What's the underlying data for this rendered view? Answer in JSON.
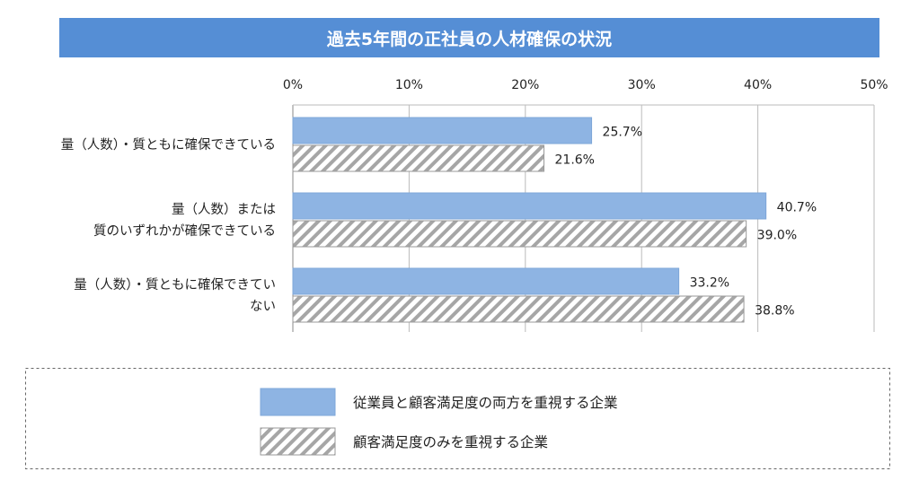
{
  "chart_data": {
    "type": "bar",
    "orientation": "horizontal",
    "title": "過去5年間の正社員の人材確保の状況",
    "categories": [
      [
        "量（人数）・質ともに確保できている"
      ],
      [
        "量（人数）または",
        "質のいずれかが確保できている"
      ],
      [
        "量（人数）・質ともに確保できてい",
        "ない"
      ]
    ],
    "series": [
      {
        "name": "従業員と顧客満足度の両方を重視する企業",
        "values": [
          25.7,
          40.7,
          33.2
        ],
        "labels": [
          "25.7%",
          "40.7%",
          "33.2%"
        ],
        "color": "#8eb4e3",
        "pattern": "solid"
      },
      {
        "name": "顧客満足度のみを重視する企業",
        "values": [
          21.6,
          39.0,
          38.8
        ],
        "labels": [
          "21.6%",
          "39.0%",
          "38.8%"
        ],
        "color": "#a6a6a6",
        "pattern": "diagonal-hatch"
      }
    ],
    "xlim": [
      0,
      50
    ],
    "xticks": [
      "0%",
      "10%",
      "20%",
      "30%",
      "40%",
      "50%"
    ],
    "xaxis_position": "top",
    "grid": true,
    "legend": "bottom"
  }
}
